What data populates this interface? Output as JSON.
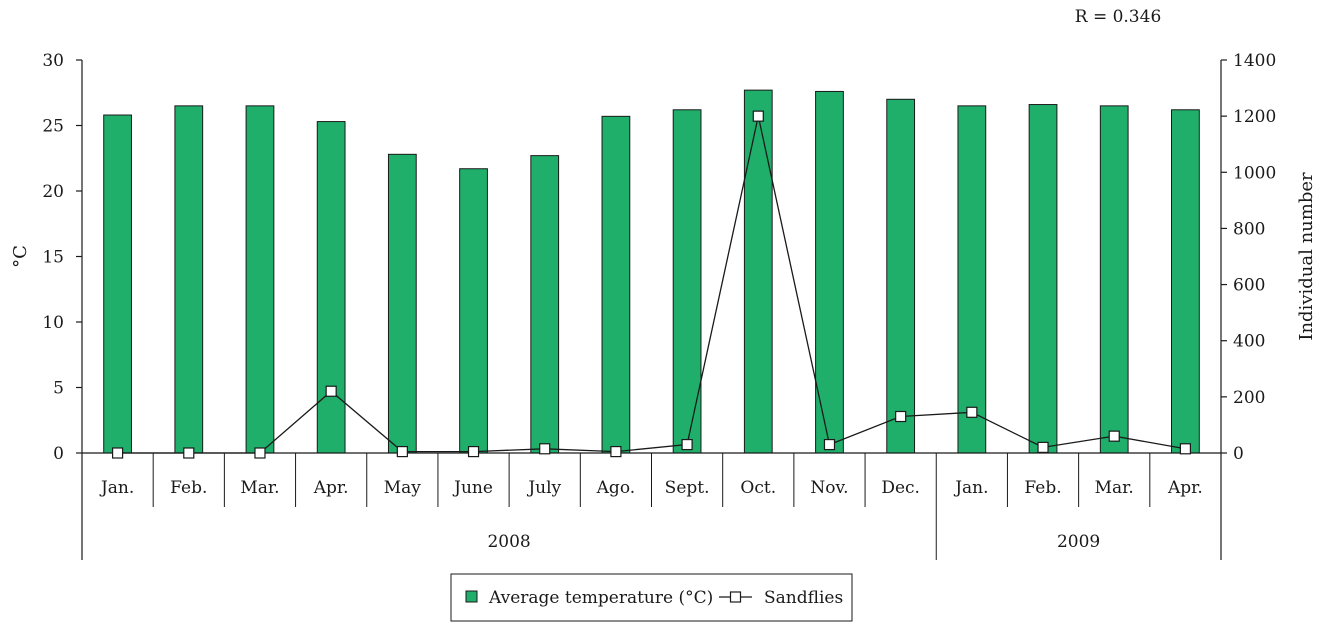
{
  "chart_data": {
    "type": "bar",
    "annotation": "R = 0.346",
    "categories": [
      "Jan.",
      "Feb.",
      "Mar.",
      "Apr.",
      "May",
      "June",
      "July",
      "Ago.",
      "Sept.",
      "Oct.",
      "Nov.",
      "Dec.",
      "Jan.",
      "Feb.",
      "Mar.",
      "Apr."
    ],
    "year_groups": [
      {
        "label": "2008",
        "count": 12
      },
      {
        "label": "2009",
        "count": 4
      }
    ],
    "series": [
      {
        "name": "Average temperature (°C)",
        "type": "bar",
        "axis": "left",
        "color": "#1faf6b",
        "values": [
          25.8,
          26.5,
          26.5,
          25.3,
          22.8,
          21.7,
          22.7,
          25.7,
          26.2,
          27.7,
          27.6,
          27.0,
          26.5,
          26.6,
          26.5,
          26.2
        ]
      },
      {
        "name": "Sandflies",
        "type": "line",
        "axis": "right",
        "color": "#1a1a1a",
        "marker": "square",
        "values": [
          0,
          0,
          0,
          220,
          5,
          5,
          15,
          5,
          30,
          1200,
          30,
          130,
          145,
          20,
          60,
          15
        ]
      }
    ],
    "ylabel": "°C",
    "ylim": [
      0,
      30
    ],
    "yticks": [
      0,
      5,
      10,
      15,
      20,
      25,
      30
    ],
    "y2label": "Individual number",
    "y2lim": [
      0,
      1400
    ],
    "y2ticks": [
      0,
      200,
      400,
      600,
      800,
      1000,
      1200,
      1400
    ],
    "grid": false,
    "legend_position": "bottom-center"
  }
}
